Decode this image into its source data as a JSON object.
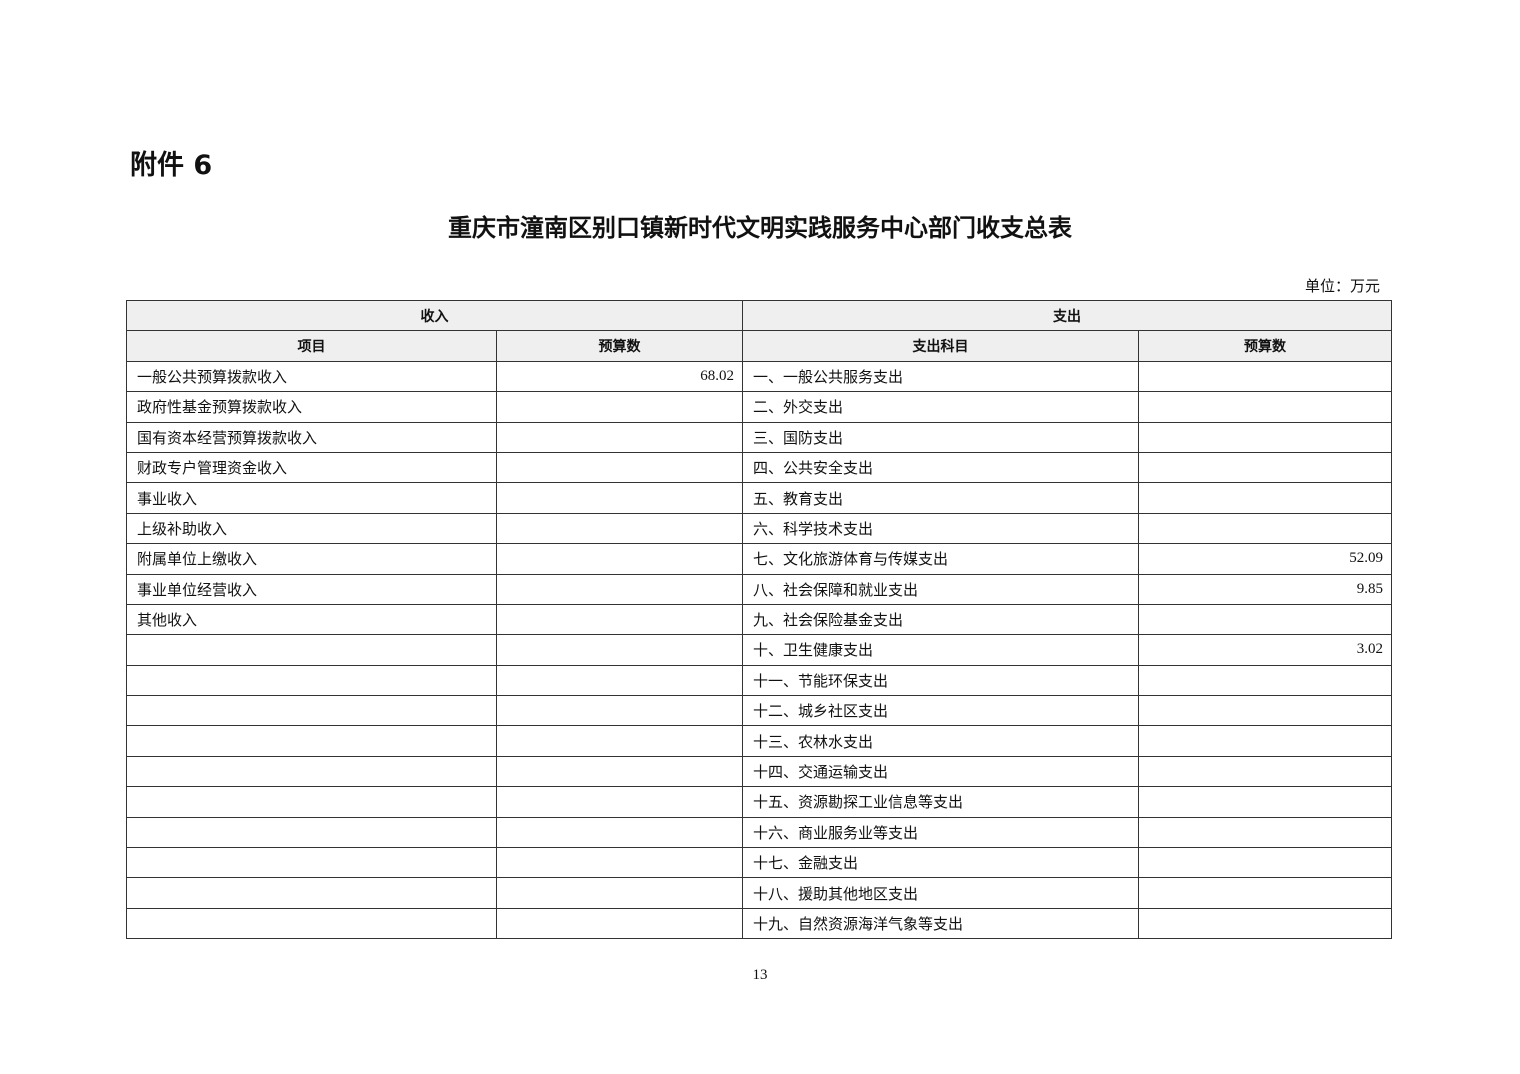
{
  "attachment_label": "附件 6",
  "title": "重庆市潼南区别口镇新时代文明实践服务中心部门收支总表",
  "unit": "单位：万元",
  "table": {
    "group_headers": [
      "收入",
      "支出"
    ],
    "column_headers": [
      "项目",
      "预算数",
      "支出科目",
      "预算数"
    ],
    "rows": [
      [
        "一般公共预算拨款收入",
        "68.02",
        "一、一般公共服务支出",
        ""
      ],
      [
        "政府性基金预算拨款收入",
        "",
        "二、外交支出",
        ""
      ],
      [
        "国有资本经营预算拨款收入",
        "",
        "三、国防支出",
        ""
      ],
      [
        "财政专户管理资金收入",
        "",
        "四、公共安全支出",
        ""
      ],
      [
        "事业收入",
        "",
        "五、教育支出",
        ""
      ],
      [
        "上级补助收入",
        "",
        "六、科学技术支出",
        ""
      ],
      [
        "附属单位上缴收入",
        "",
        "七、文化旅游体育与传媒支出",
        "52.09"
      ],
      [
        "事业单位经营收入",
        "",
        "八、社会保障和就业支出",
        "9.85"
      ],
      [
        "其他收入",
        "",
        "九、社会保险基金支出",
        ""
      ],
      [
        "",
        "",
        "十、卫生健康支出",
        "3.02"
      ],
      [
        "",
        "",
        "十一、节能环保支出",
        ""
      ],
      [
        "",
        "",
        "十二、城乡社区支出",
        ""
      ],
      [
        "",
        "",
        "十三、农林水支出",
        ""
      ],
      [
        "",
        "",
        "十四、交通运输支出",
        ""
      ],
      [
        "",
        "",
        "十五、资源勘探工业信息等支出",
        ""
      ],
      [
        "",
        "",
        "十六、商业服务业等支出",
        ""
      ],
      [
        "",
        "",
        "十七、金融支出",
        ""
      ],
      [
        "",
        "",
        "十八、援助其他地区支出",
        ""
      ],
      [
        "",
        "",
        "十九、自然资源海洋气象等支出",
        ""
      ]
    ]
  },
  "page_number": "13"
}
